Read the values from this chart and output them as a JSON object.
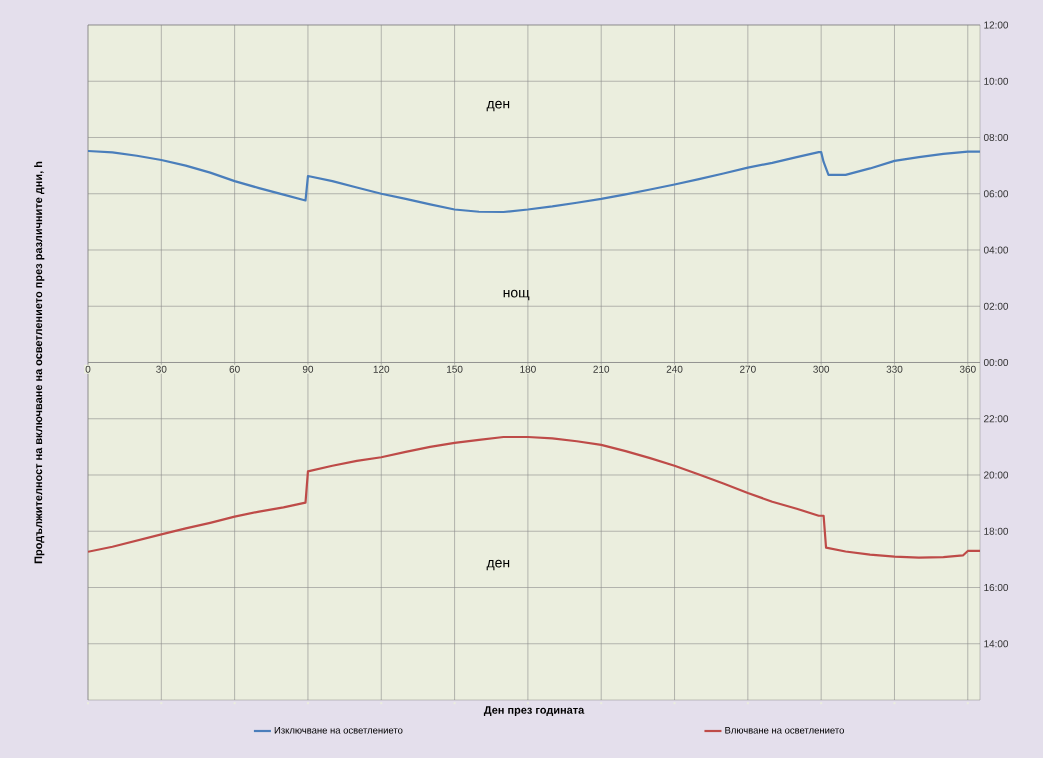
{
  "chart_data": [
    {
      "type": "line",
      "ylabel": "Продължителност на включване на осветлението през различните дни, h",
      "xlim": [
        0,
        365
      ],
      "xticks": [
        0,
        30,
        60,
        90,
        120,
        150,
        180,
        210,
        240,
        270,
        300,
        330,
        360
      ],
      "ylim": [
        0,
        12
      ],
      "yticks": [
        {
          "value": 0,
          "label": "00:00"
        },
        {
          "value": 2,
          "label": "02:00"
        },
        {
          "value": 4,
          "label": "04:00"
        },
        {
          "value": 6,
          "label": "06:00"
        },
        {
          "value": 8,
          "label": "08:00"
        },
        {
          "value": 10,
          "label": "10:00"
        },
        {
          "value": 12,
          "label": "12:00"
        }
      ],
      "grid": true,
      "legend": "bottom",
      "line_style": "solid",
      "annotations": [
        "ден",
        "нощ"
      ],
      "series": [
        {
          "name": "Изключване на осветлението",
          "color": "#4a7ebb",
          "x": [
            0,
            10,
            20,
            30,
            40,
            50,
            60,
            70,
            80,
            89,
            90,
            100,
            110,
            120,
            130,
            140,
            150,
            160,
            170,
            180,
            190,
            200,
            210,
            220,
            230,
            240,
            250,
            260,
            270,
            280,
            290,
            299,
            300,
            301,
            303,
            310,
            320,
            330,
            340,
            350,
            360,
            365
          ],
          "values": [
            7.52,
            7.47,
            7.35,
            7.2,
            7.0,
            6.75,
            6.45,
            6.2,
            5.97,
            5.76,
            6.63,
            6.45,
            6.22,
            6.0,
            5.82,
            5.62,
            5.44,
            5.36,
            5.35,
            5.44,
            5.55,
            5.68,
            5.82,
            5.98,
            6.15,
            6.33,
            6.52,
            6.72,
            6.93,
            7.1,
            7.3,
            7.48,
            7.48,
            7.13,
            6.67,
            6.67,
            6.9,
            7.17,
            7.3,
            7.42,
            7.5,
            7.5
          ]
        }
      ]
    },
    {
      "type": "line",
      "xlabel": "Ден през годината",
      "xlim": [
        0,
        365
      ],
      "xticks": [
        0,
        30,
        60,
        90,
        120,
        150,
        180,
        210,
        240,
        270,
        300,
        330,
        360
      ],
      "ylim": [
        12,
        24
      ],
      "yticks": [
        {
          "value": 14,
          "label": "14:00"
        },
        {
          "value": 16,
          "label": "16:00"
        },
        {
          "value": 18,
          "label": "18:00"
        },
        {
          "value": 20,
          "label": "20:00"
        },
        {
          "value": 22,
          "label": "22:00"
        }
      ],
      "tick_labels": "y",
      "grid": true,
      "legend": "bottom",
      "line_style": "solid",
      "annotations": [
        "ден"
      ],
      "series": [
        {
          "name": "Влючване на осветлението",
          "color": "#be4b48",
          "x": [
            0,
            10,
            20,
            30,
            40,
            50,
            60,
            70,
            80,
            89,
            90,
            100,
            110,
            120,
            130,
            140,
            150,
            160,
            170,
            180,
            190,
            200,
            210,
            220,
            230,
            240,
            250,
            260,
            270,
            280,
            290,
            299,
            301,
            302,
            310,
            320,
            330,
            340,
            350,
            358,
            360,
            365
          ],
          "values": [
            17.27,
            17.45,
            17.67,
            17.89,
            18.1,
            18.3,
            18.52,
            18.7,
            18.85,
            19.02,
            20.13,
            20.33,
            20.5,
            20.63,
            20.82,
            21.0,
            21.14,
            21.25,
            21.35,
            21.35,
            21.3,
            21.2,
            21.07,
            20.85,
            20.6,
            20.33,
            20.02,
            19.7,
            19.36,
            19.05,
            18.8,
            18.55,
            18.55,
            17.42,
            17.28,
            17.17,
            17.1,
            17.06,
            17.08,
            17.14,
            17.3,
            17.3
          ]
        }
      ]
    }
  ]
}
